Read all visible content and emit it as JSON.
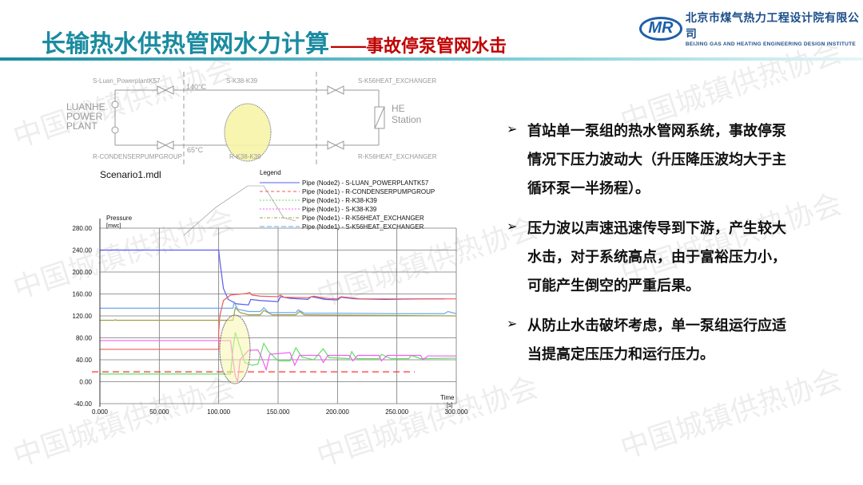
{
  "header": {
    "title": "长输热水供热管网水力计算",
    "subtitle": "——事故停泵管网水击"
  },
  "logo": {
    "mark": "MR",
    "name_cn": "北京市煤气热力工程设计院有限公司",
    "name_en": "BEIJING GAS AND HEATING ENGINEERING DESIGN INSTITUTE"
  },
  "watermark": "中国城镇供热协会",
  "schematic": {
    "plant_label": [
      "LUANHE",
      "POWER",
      "PLANT"
    ],
    "station_label": [
      "HE",
      "Station"
    ],
    "supply_temp": "140°C",
    "return_temp": "65°C",
    "nodes": {
      "s1": "S-Luan_PowerplantK57",
      "r1": "R-CONDENSERPUMPGROUP",
      "s2": "S-K38-K39",
      "r2": "R-K38-K39",
      "s3": "S-K56HEAT_EXCHANGER",
      "r3": "R-K56HEAT_EXCHANGER"
    },
    "file": "Scenario1.mdl"
  },
  "legend": {
    "title": "Legend",
    "items": [
      {
        "label": "Pipe (Node2) - S-LUAN_POWERPLANTK57",
        "color": "#5b5bf0",
        "dash": ""
      },
      {
        "label": "Pipe (Node1) - R-CONDENSERPUMPGROUP",
        "color": "#f05a5a",
        "dash": "4,3"
      },
      {
        "label": "Pipe (Node1) - R-K38-K39",
        "color": "#60e060",
        "dash": "2,2"
      },
      {
        "label": "Pipe (Node1) - S-K38-K39",
        "color": "#f060f0",
        "dash": "2,2"
      },
      {
        "label": "Pipe (Node1) - R-K56HEAT_EXCHANGER",
        "color": "#a0a040",
        "dash": "4,2,1,2"
      },
      {
        "label": "Pipe (Node1) - S-K56HEAT_EXCHANGER",
        "color": "#6aa8f0",
        "dash": "6,3"
      }
    ]
  },
  "chart_data": {
    "type": "line",
    "ylabel": "Pressure",
    "yunit": "[mwc]",
    "xlabel": "Time",
    "xunit": "[s]",
    "xlim": [
      0,
      300
    ],
    "ylim": [
      -40,
      280
    ],
    "xticks": [
      "0.000",
      "50.000",
      "100.000",
      "150.000",
      "200.000",
      "250.000",
      "300.000"
    ],
    "yticks": [
      "280.00",
      "240.00",
      "200.00",
      "160.00",
      "120.00",
      "80.00",
      "40.00",
      "0.00",
      "-40.00"
    ],
    "grid": true,
    "series": [
      {
        "name": "Pipe (Node2) - S-LUAN_POWERPLANTK57",
        "color": "#5b5bf0",
        "points": [
          [
            0,
            240
          ],
          [
            100,
            240
          ],
          [
            101,
            220
          ],
          [
            104,
            170
          ],
          [
            108,
            150
          ],
          [
            115,
            142
          ],
          [
            125,
            140
          ],
          [
            127,
            150
          ],
          [
            135,
            148
          ],
          [
            150,
            146
          ],
          [
            152,
            155
          ],
          [
            160,
            152
          ],
          [
            175,
            150
          ],
          [
            178,
            155
          ],
          [
            190,
            150
          ],
          [
            200,
            149
          ],
          [
            203,
            154
          ],
          [
            215,
            151
          ],
          [
            240,
            150
          ],
          [
            270,
            151
          ],
          [
            290,
            151
          ]
        ]
      },
      {
        "name": "Pipe (Node1) - R-CONDENSERPUMPGROUP",
        "color": "#f05a5a",
        "points": [
          [
            0,
            59
          ],
          [
            100,
            59
          ],
          [
            100,
            90
          ],
          [
            101,
            120
          ],
          [
            104,
            148
          ],
          [
            110,
            158
          ],
          [
            124,
            161
          ],
          [
            126,
            163
          ],
          [
            128,
            158
          ],
          [
            135,
            156
          ],
          [
            150,
            155
          ],
          [
            152,
            158
          ],
          [
            155,
            154
          ],
          [
            175,
            153
          ],
          [
            180,
            156
          ],
          [
            190,
            152
          ],
          [
            200,
            151
          ],
          [
            203,
            155
          ],
          [
            220,
            151
          ],
          [
            260,
            151
          ],
          [
            300,
            151
          ]
        ]
      },
      {
        "name": "Pipe (Node1) - R-K38-K39",
        "color": "#60e060",
        "points": [
          [
            0,
            14
          ],
          [
            110,
            14
          ],
          [
            112,
            60
          ],
          [
            114,
            90
          ],
          [
            117,
            70
          ],
          [
            122,
            35
          ],
          [
            128,
            30
          ],
          [
            133,
            32
          ],
          [
            138,
            70
          ],
          [
            142,
            55
          ],
          [
            150,
            38
          ],
          [
            160,
            38
          ],
          [
            165,
            62
          ],
          [
            170,
            45
          ],
          [
            180,
            40
          ],
          [
            188,
            60
          ],
          [
            193,
            44
          ],
          [
            210,
            42
          ],
          [
            212,
            55
          ],
          [
            216,
            42
          ],
          [
            235,
            42
          ],
          [
            237,
            50
          ],
          [
            245,
            42
          ],
          [
            260,
            42
          ],
          [
            262,
            48
          ],
          [
            270,
            42
          ],
          [
            300,
            43
          ]
        ]
      },
      {
        "name": "Pipe (Node1) - S-K38-K39",
        "color": "#f060f0",
        "points": [
          [
            0,
            75
          ],
          [
            110,
            75
          ],
          [
            112,
            40
          ],
          [
            114,
            10
          ],
          [
            116,
            0
          ],
          [
            118,
            40
          ],
          [
            125,
            57
          ],
          [
            133,
            58
          ],
          [
            136,
            45
          ],
          [
            140,
            22
          ],
          [
            143,
            50
          ],
          [
            160,
            53
          ],
          [
            164,
            30
          ],
          [
            168,
            48
          ],
          [
            185,
            48
          ],
          [
            188,
            35
          ],
          [
            192,
            48
          ],
          [
            210,
            48
          ],
          [
            213,
            38
          ],
          [
            217,
            48
          ],
          [
            235,
            48
          ],
          [
            237,
            38
          ],
          [
            242,
            48
          ],
          [
            270,
            48
          ],
          [
            272,
            40
          ],
          [
            276,
            47
          ],
          [
            300,
            47
          ]
        ]
      },
      {
        "name": "Pipe (Node1) - R-K56HEAT_EXCHANGER",
        "color": "#a0a040",
        "points": [
          [
            0,
            112
          ],
          [
            12,
            112
          ],
          [
            13,
            113
          ],
          [
            14,
            112
          ],
          [
            112,
            112
          ],
          [
            114,
            135
          ],
          [
            118,
            126
          ],
          [
            125,
            122
          ],
          [
            135,
            122
          ],
          [
            138,
            130
          ],
          [
            145,
            122
          ],
          [
            165,
            122
          ],
          [
            168,
            128
          ],
          [
            172,
            122
          ],
          [
            300,
            120
          ]
        ]
      },
      {
        "name": "Pipe (Node1) - S-K56HEAT_EXCHANGER",
        "color": "#6aa8f0",
        "points": [
          [
            0,
            134
          ],
          [
            112,
            134
          ],
          [
            113,
            145
          ],
          [
            116,
            132
          ],
          [
            125,
            128
          ],
          [
            135,
            128
          ],
          [
            138,
            135
          ],
          [
            142,
            126
          ],
          [
            165,
            126
          ],
          [
            167,
            131
          ],
          [
            172,
            125
          ],
          [
            200,
            125
          ],
          [
            250,
            124
          ],
          [
            290,
            124
          ],
          [
            293,
            128
          ],
          [
            300,
            124
          ]
        ]
      }
    ],
    "reference_line": {
      "value": 18,
      "x_end": 265,
      "color": "#ff3030"
    }
  },
  "bullets": [
    "首站单一泵组的热水管网系统，事故停泵情况下压力波动大（升压降压波均大于主循环泵一半扬程）。",
    "压力波以声速迅速传导到下游，产生较大水击，对于系统高点，由于富裕压力小，可能产生倒空的严重后果。",
    "从防止水击破坏考虑，单一泵组运行应适当提高定压压力和运行压力。"
  ],
  "bullet_icon": "arrow-right-icon"
}
